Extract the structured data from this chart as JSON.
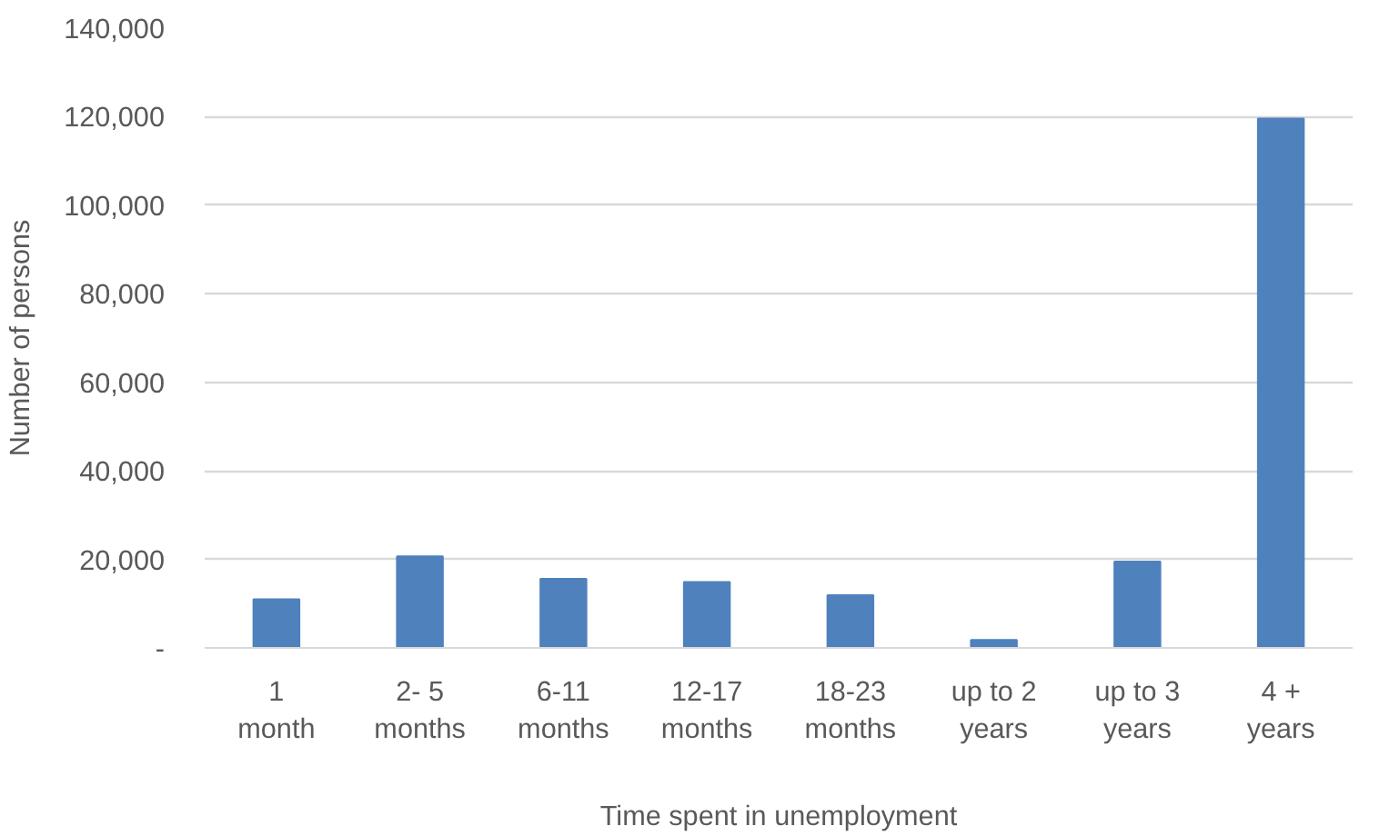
{
  "chart_data": {
    "type": "bar",
    "xlabel": "Time spent in unemployment",
    "ylabel": "Number of persons",
    "categories": [
      "1 month",
      "2- 5 months",
      "6-11 months",
      "12-17 months",
      "18-23 months",
      "up to 2 years",
      "up to 3 years",
      "4 + years"
    ],
    "values": [
      11000,
      20700,
      15600,
      14900,
      11900,
      1800,
      19500,
      119600
    ],
    "color": "#4f81bd",
    "ylim": [
      0,
      140000
    ],
    "yticks": [
      {
        "value": 0,
        "label": "-"
      },
      {
        "value": 20000,
        "label": "20,000"
      },
      {
        "value": 40000,
        "label": "40,000"
      },
      {
        "value": 60000,
        "label": "60,000"
      },
      {
        "value": 80000,
        "label": "80,000"
      },
      {
        "value": 100000,
        "label": "100,000"
      },
      {
        "value": 120000,
        "label": "120,000"
      },
      {
        "value": 140000,
        "label": "140,000"
      }
    ],
    "grid": "y"
  }
}
